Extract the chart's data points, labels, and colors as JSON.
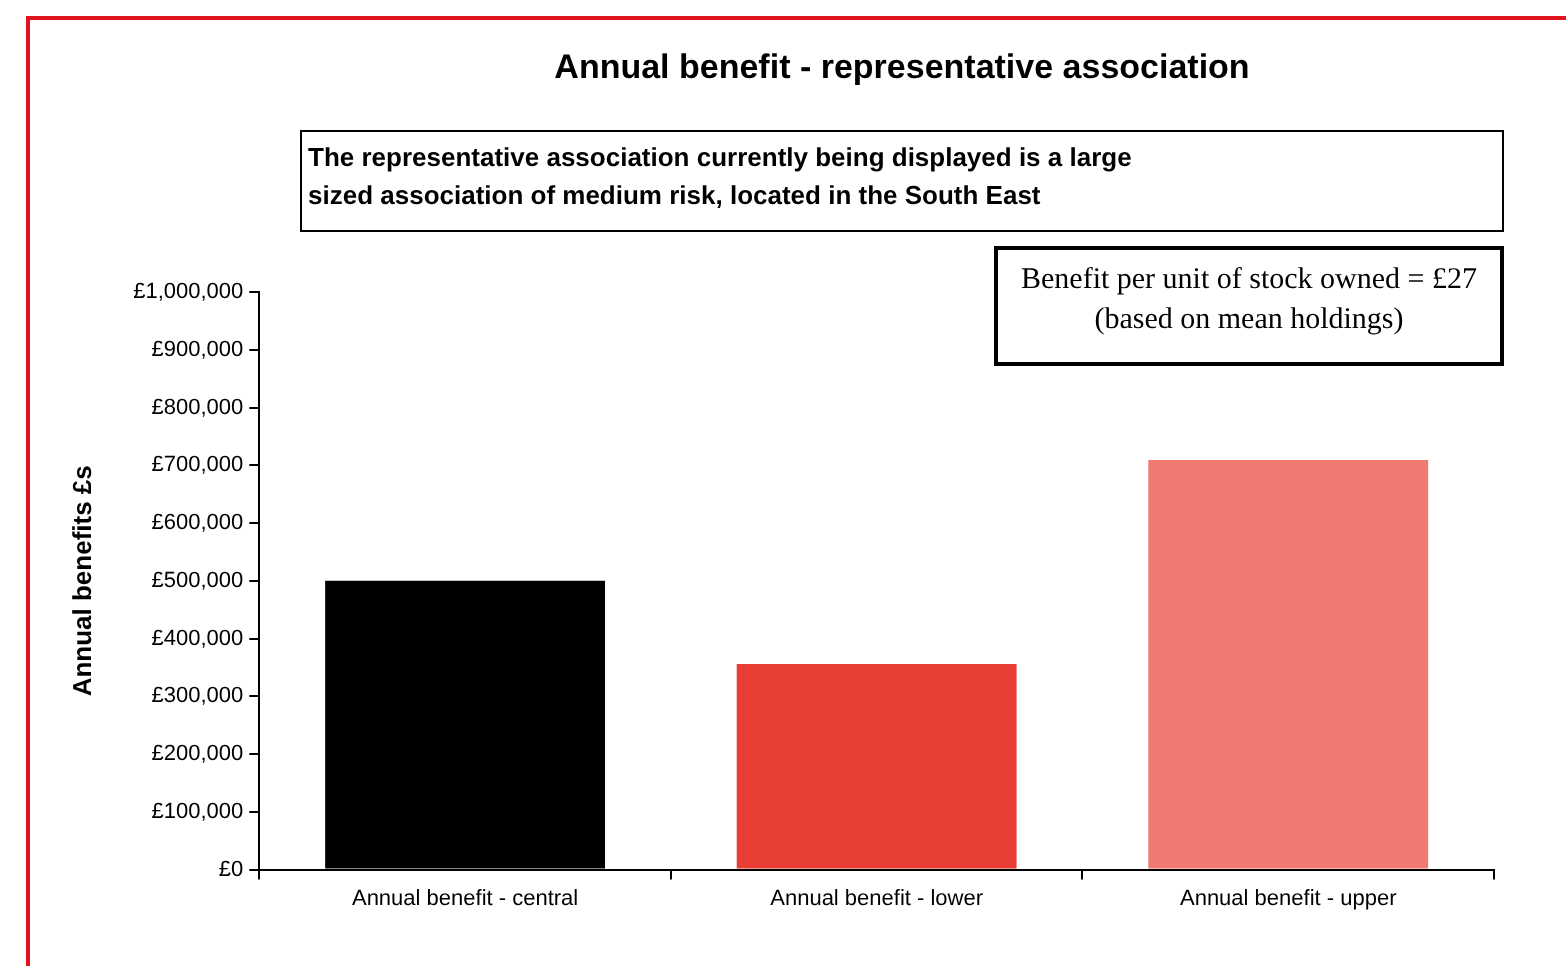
{
  "chart_data": {
    "type": "bar",
    "title": "Annual benefit - representative association",
    "subtitle": "The representative association currently being displayed is a large sized association of  medium risk, located in the South East",
    "annotations": [
      "Benefit per unit of stock owned = £27 (based on mean holdings)"
    ],
    "ylabel": "Annual benefits £s",
    "categories": [
      "Annual benefit - central",
      "Annual benefit - lower",
      "Annual benefit - upper"
    ],
    "values": [
      500000,
      356000,
      709000
    ],
    "colors": [
      "#000000",
      "#e83e35",
      "#f07a72"
    ],
    "ylim": [
      0,
      1000000
    ],
    "yticks": [
      {
        "value": 0,
        "label": "£0"
      },
      {
        "value": 100000,
        "label": "£100,000"
      },
      {
        "value": 200000,
        "label": "£200,000"
      },
      {
        "value": 300000,
        "label": "£300,000"
      },
      {
        "value": 400000,
        "label": "£400,000"
      },
      {
        "value": 500000,
        "label": "£500,000"
      },
      {
        "value": 600000,
        "label": "£600,000"
      },
      {
        "value": 700000,
        "label": "£700,000"
      },
      {
        "value": 800000,
        "label": "£800,000"
      },
      {
        "value": 900000,
        "label": "£900,000"
      },
      {
        "value": 1000000,
        "label": "£1,000,000"
      }
    ],
    "grid": false,
    "legend": false
  }
}
